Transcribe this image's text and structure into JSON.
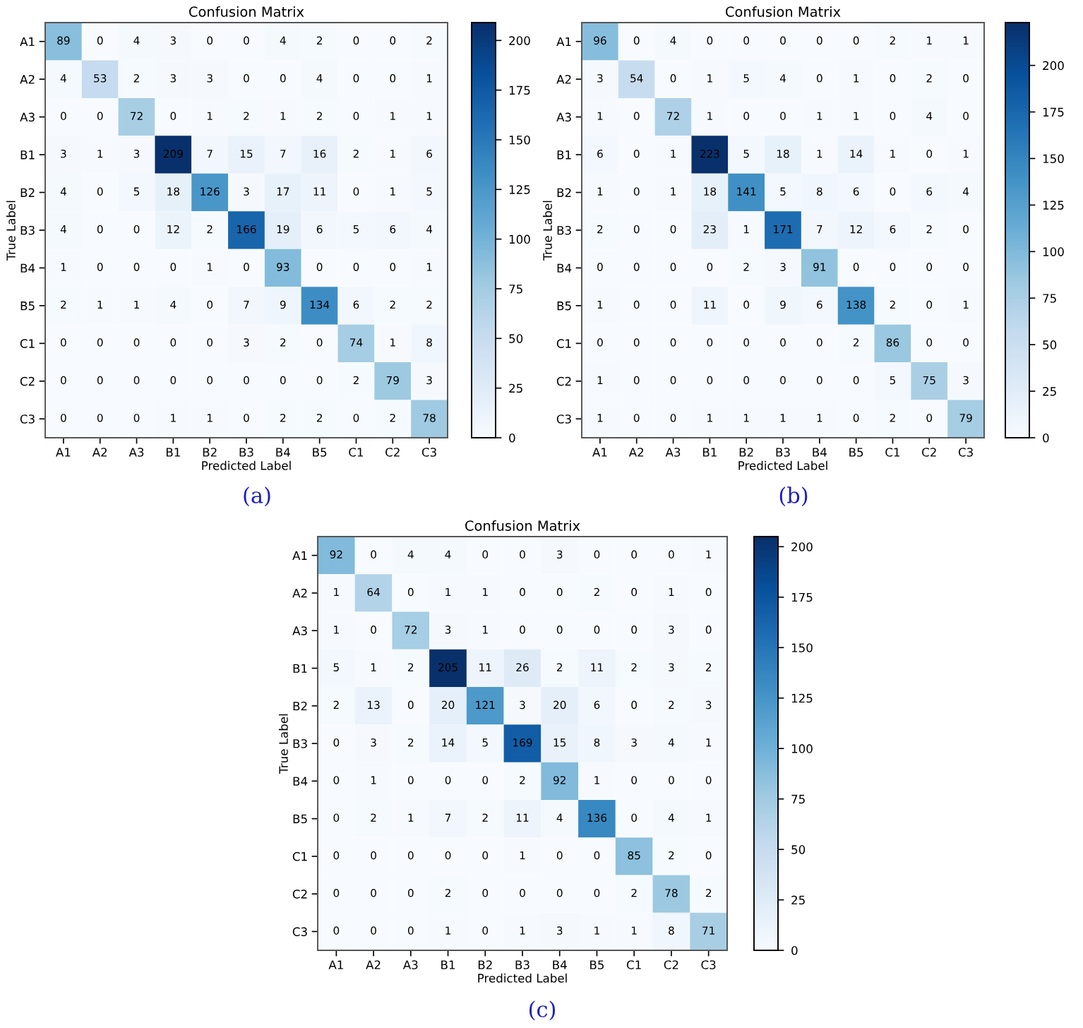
{
  "chart_data": [
    {
      "type": "heatmap",
      "title": "Confusion Matrix",
      "xlabel": "Predicted Label",
      "ylabel": "True Label",
      "categories": [
        "A1",
        "A2",
        "A3",
        "B1",
        "B2",
        "B3",
        "B4",
        "B5",
        "C1",
        "C2",
        "C3"
      ],
      "y_categories": [
        "A1",
        "A2",
        "A3",
        "B1",
        "B2",
        "B3",
        "B4",
        "B5",
        "C1",
        "C2",
        "C3"
      ],
      "cells": [
        [
          89,
          0,
          4,
          3,
          0,
          0,
          4,
          2,
          0,
          0,
          2
        ],
        [
          4,
          53,
          2,
          3,
          3,
          0,
          0,
          4,
          0,
          0,
          1
        ],
        [
          0,
          0,
          72,
          0,
          1,
          2,
          1,
          2,
          0,
          1,
          1
        ],
        [
          3,
          1,
          3,
          209,
          7,
          15,
          7,
          16,
          2,
          1,
          6
        ],
        [
          4,
          0,
          5,
          18,
          126,
          3,
          17,
          11,
          0,
          1,
          5
        ],
        [
          4,
          0,
          0,
          12,
          2,
          166,
          19,
          6,
          5,
          6,
          4
        ],
        [
          1,
          0,
          0,
          0,
          1,
          0,
          93,
          0,
          0,
          0,
          1
        ],
        [
          2,
          1,
          1,
          4,
          0,
          7,
          9,
          134,
          6,
          2,
          2
        ],
        [
          0,
          0,
          0,
          0,
          0,
          3,
          2,
          0,
          74,
          1,
          8
        ],
        [
          0,
          0,
          0,
          0,
          0,
          0,
          0,
          0,
          2,
          79,
          3
        ],
        [
          0,
          0,
          0,
          1,
          1,
          0,
          2,
          2,
          0,
          2,
          78
        ]
      ],
      "clim": [
        0,
        209
      ],
      "cticks": [
        0,
        25,
        50,
        75,
        100,
        125,
        150,
        175,
        200
      ],
      "data_labels": true,
      "annotations": [
        "(a)"
      ]
    },
    {
      "type": "heatmap",
      "title": "Confusion Matrix",
      "xlabel": "Predicted Label",
      "ylabel": "True Label",
      "categories": [
        "A1",
        "A2",
        "A3",
        "B1",
        "B2",
        "B3",
        "B4",
        "B5",
        "C1",
        "C2",
        "C3"
      ],
      "y_categories": [
        "A1",
        "A2",
        "A3",
        "B1",
        "B2",
        "B3",
        "B4",
        "B5",
        "C1",
        "C2",
        "C3"
      ],
      "cells": [
        [
          96,
          0,
          4,
          0,
          0,
          0,
          0,
          0,
          2,
          1,
          1
        ],
        [
          3,
          54,
          0,
          1,
          5,
          4,
          0,
          1,
          0,
          2,
          0
        ],
        [
          1,
          0,
          72,
          1,
          0,
          0,
          1,
          1,
          0,
          4,
          0
        ],
        [
          6,
          0,
          1,
          223,
          5,
          18,
          1,
          14,
          1,
          0,
          1
        ],
        [
          1,
          0,
          1,
          18,
          141,
          5,
          8,
          6,
          0,
          6,
          4
        ],
        [
          2,
          0,
          0,
          23,
          1,
          171,
          7,
          12,
          6,
          2,
          0
        ],
        [
          0,
          0,
          0,
          0,
          2,
          3,
          91,
          0,
          0,
          0,
          0
        ],
        [
          1,
          0,
          0,
          11,
          0,
          9,
          6,
          138,
          2,
          0,
          1
        ],
        [
          0,
          0,
          0,
          0,
          0,
          0,
          0,
          2,
          86,
          0,
          0
        ],
        [
          1,
          0,
          0,
          0,
          0,
          0,
          0,
          0,
          5,
          75,
          3
        ],
        [
          1,
          0,
          0,
          1,
          1,
          1,
          1,
          0,
          2,
          0,
          79
        ]
      ],
      "clim": [
        0,
        223
      ],
      "cticks": [
        0,
        25,
        50,
        75,
        100,
        125,
        150,
        175,
        200
      ],
      "data_labels": true,
      "annotations": [
        "(b)"
      ]
    },
    {
      "type": "heatmap",
      "title": "Confusion Matrix",
      "xlabel": "Predicted Label",
      "ylabel": "True Label",
      "categories": [
        "A1",
        "A2",
        "A3",
        "B1",
        "B2",
        "B3",
        "B4",
        "B5",
        "C1",
        "C2",
        "C3"
      ],
      "y_categories": [
        "A1",
        "A2",
        "A3",
        "B1",
        "B2",
        "B3",
        "B4",
        "B5",
        "C1",
        "C2",
        "C3"
      ],
      "cells": [
        [
          92,
          0,
          4,
          4,
          0,
          0,
          3,
          0,
          0,
          0,
          1
        ],
        [
          1,
          64,
          0,
          1,
          1,
          0,
          0,
          2,
          0,
          1,
          0
        ],
        [
          1,
          0,
          72,
          3,
          1,
          0,
          0,
          0,
          0,
          3,
          0
        ],
        [
          5,
          1,
          2,
          205,
          11,
          26,
          2,
          11,
          2,
          3,
          2
        ],
        [
          2,
          13,
          0,
          20,
          121,
          3,
          20,
          6,
          0,
          2,
          3
        ],
        [
          0,
          3,
          2,
          14,
          5,
          169,
          15,
          8,
          3,
          4,
          1
        ],
        [
          0,
          1,
          0,
          0,
          0,
          2,
          92,
          1,
          0,
          0,
          0
        ],
        [
          0,
          2,
          1,
          7,
          2,
          11,
          4,
          136,
          0,
          4,
          1
        ],
        [
          0,
          0,
          0,
          0,
          0,
          1,
          0,
          0,
          85,
          2,
          0
        ],
        [
          0,
          0,
          0,
          2,
          0,
          0,
          0,
          0,
          2,
          78,
          2
        ],
        [
          0,
          0,
          0,
          1,
          0,
          1,
          3,
          1,
          1,
          8,
          71
        ]
      ],
      "clim": [
        0,
        205
      ],
      "cticks": [
        0,
        25,
        50,
        75,
        100,
        125,
        150,
        175,
        200
      ],
      "data_labels": true,
      "annotations": [
        "(c)"
      ]
    }
  ]
}
